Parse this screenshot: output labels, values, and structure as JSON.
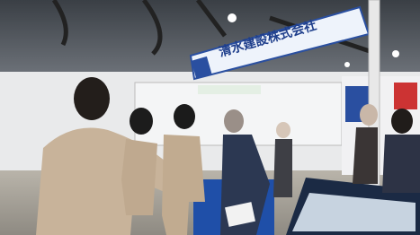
{
  "signs": {
    "banner": "清水建設株式会社"
  }
}
